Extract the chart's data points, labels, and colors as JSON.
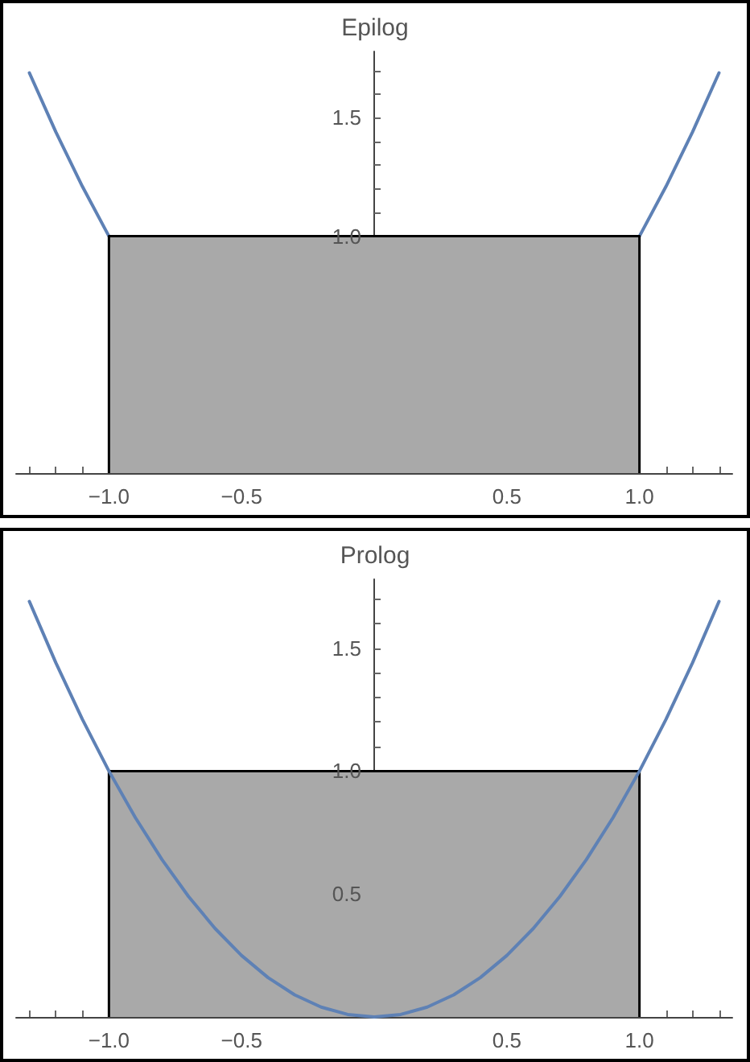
{
  "chart_data": [
    {
      "type": "line",
      "title": "Epilog",
      "xlim": [
        -1.35,
        1.35
      ],
      "ylim": [
        0,
        1.78
      ],
      "xticks": [
        {
          "value": -1.3,
          "label": null
        },
        {
          "value": -1.2,
          "label": null
        },
        {
          "value": -1.1,
          "label": null
        },
        {
          "value": -1,
          "label": "−1.0"
        },
        {
          "value": -0.9,
          "label": null
        },
        {
          "value": -0.8,
          "label": null
        },
        {
          "value": -0.7,
          "label": null
        },
        {
          "value": -0.6,
          "label": null
        },
        {
          "value": -0.5,
          "label": "−0.5"
        },
        {
          "value": -0.4,
          "label": null
        },
        {
          "value": -0.3,
          "label": null
        },
        {
          "value": -0.2,
          "label": null
        },
        {
          "value": -0.1,
          "label": null
        },
        {
          "value": 0.1,
          "label": null
        },
        {
          "value": 0.2,
          "label": null
        },
        {
          "value": 0.3,
          "label": null
        },
        {
          "value": 0.4,
          "label": null
        },
        0.5,
        {
          "value": 0.6,
          "label": null
        },
        {
          "value": 0.7,
          "label": null
        },
        {
          "value": 0.8,
          "label": null
        },
        {
          "value": 0.9,
          "label": null
        },
        {
          "value": 1,
          "label": "1.0"
        },
        {
          "value": 1.1,
          "label": null
        },
        {
          "value": 1.2,
          "label": null
        },
        {
          "value": 1.3,
          "label": null
        }
      ],
      "yticks": [
        {
          "value": 1,
          "label": "1.0"
        },
        {
          "value": 1.1,
          "label": null
        },
        {
          "value": 1.2,
          "label": null
        },
        {
          "value": 1.3,
          "label": null
        },
        {
          "value": 1.4,
          "label": null
        },
        {
          "value": 1.5,
          "label": "1.5"
        },
        {
          "value": 1.6,
          "label": null
        },
        {
          "value": 1.7,
          "label": null
        }
      ],
      "grid": false,
      "marker": "none",
      "series": [
        {
          "type": "line",
          "color": "#5e81b5",
          "x": [
            -1.3,
            -1.2,
            -1.1,
            -1,
            0,
            1,
            1.1,
            1.2,
            1.3
          ],
          "values": [
            1.69,
            1.44,
            1.21,
            1,
            null,
            1,
            1.21,
            1.44,
            1.69
          ]
        },
        {
          "type": "area",
          "color": "#a9a9a9",
          "x": [
            -1,
            -1,
            1,
            1
          ],
          "values": [
            0,
            1,
            1,
            0
          ]
        }
      ]
    },
    {
      "type": "line",
      "title": "Prolog",
      "xlim": [
        -1.35,
        1.35
      ],
      "ylim": [
        0,
        1.78
      ],
      "xticks": [
        {
          "value": -1.3,
          "label": null
        },
        {
          "value": -1.2,
          "label": null
        },
        {
          "value": -1.1,
          "label": null
        },
        {
          "value": -1,
          "label": "−1.0"
        },
        {
          "value": -0.9,
          "label": null
        },
        {
          "value": -0.8,
          "label": null
        },
        {
          "value": -0.7,
          "label": null
        },
        {
          "value": -0.6,
          "label": null
        },
        {
          "value": -0.5,
          "label": "−0.5"
        },
        {
          "value": -0.4,
          "label": null
        },
        {
          "value": -0.3,
          "label": null
        },
        {
          "value": -0.2,
          "label": null
        },
        {
          "value": -0.1,
          "label": null
        },
        {
          "value": 0.1,
          "label": null
        },
        {
          "value": 0.2,
          "label": null
        },
        {
          "value": 0.3,
          "label": null
        },
        {
          "value": 0.4,
          "label": null
        },
        0.5,
        {
          "value": 0.6,
          "label": null
        },
        {
          "value": 0.7,
          "label": null
        },
        {
          "value": 0.8,
          "label": null
        },
        {
          "value": 0.9,
          "label": null
        },
        {
          "value": 1,
          "label": "1.0"
        },
        {
          "value": 1.1,
          "label": null
        },
        {
          "value": 1.2,
          "label": null
        },
        {
          "value": 1.3,
          "label": null
        }
      ],
      "yticks": [
        {
          "value": 0.1,
          "label": null
        },
        {
          "value": 0.2,
          "label": null
        },
        {
          "value": 0.3,
          "label": null
        },
        {
          "value": 0.4,
          "label": null
        },
        {
          "value": 0.5,
          "label": "0.5"
        },
        {
          "value": 0.6,
          "label": null
        },
        {
          "value": 0.7,
          "label": null
        },
        {
          "value": 0.8,
          "label": null
        },
        {
          "value": 0.9,
          "label": null
        },
        {
          "value": 1,
          "label": "1.0"
        },
        {
          "value": 1.1,
          "label": null
        },
        {
          "value": 1.2,
          "label": null
        },
        {
          "value": 1.3,
          "label": null
        },
        {
          "value": 1.4,
          "label": null
        },
        {
          "value": 1.5,
          "label": "1.5"
        },
        {
          "value": 1.6,
          "label": null
        },
        {
          "value": 1.7,
          "label": null
        }
      ],
      "grid": false,
      "marker": "none",
      "series": [
        {
          "type": "area",
          "color": "#a9a9a9",
          "x": [
            -1,
            -1,
            1,
            1
          ],
          "values": [
            0,
            1,
            1,
            0
          ]
        },
        {
          "type": "line",
          "color": "#5e81b5",
          "x": [
            -1.3,
            -1.2,
            -1.1,
            -1,
            -0.9,
            -0.8,
            -0.7,
            -0.6,
            -0.5,
            -0.4,
            -0.3,
            -0.2,
            -0.1,
            0,
            0.1,
            0.2,
            0.3,
            0.4,
            0.5,
            0.6,
            0.7,
            0.8,
            0.9,
            1,
            1.1,
            1.2,
            1.3
          ],
          "values": [
            1.69,
            1.44,
            1.21,
            1,
            0.81,
            0.64,
            0.49,
            0.36,
            0.25,
            0.16,
            0.09,
            0.04,
            0.01,
            0,
            0.01,
            0.04,
            0.09,
            0.16,
            0.25,
            0.36,
            0.49,
            0.64,
            0.81,
            1,
            1.21,
            1.44,
            1.69
          ]
        }
      ]
    }
  ]
}
